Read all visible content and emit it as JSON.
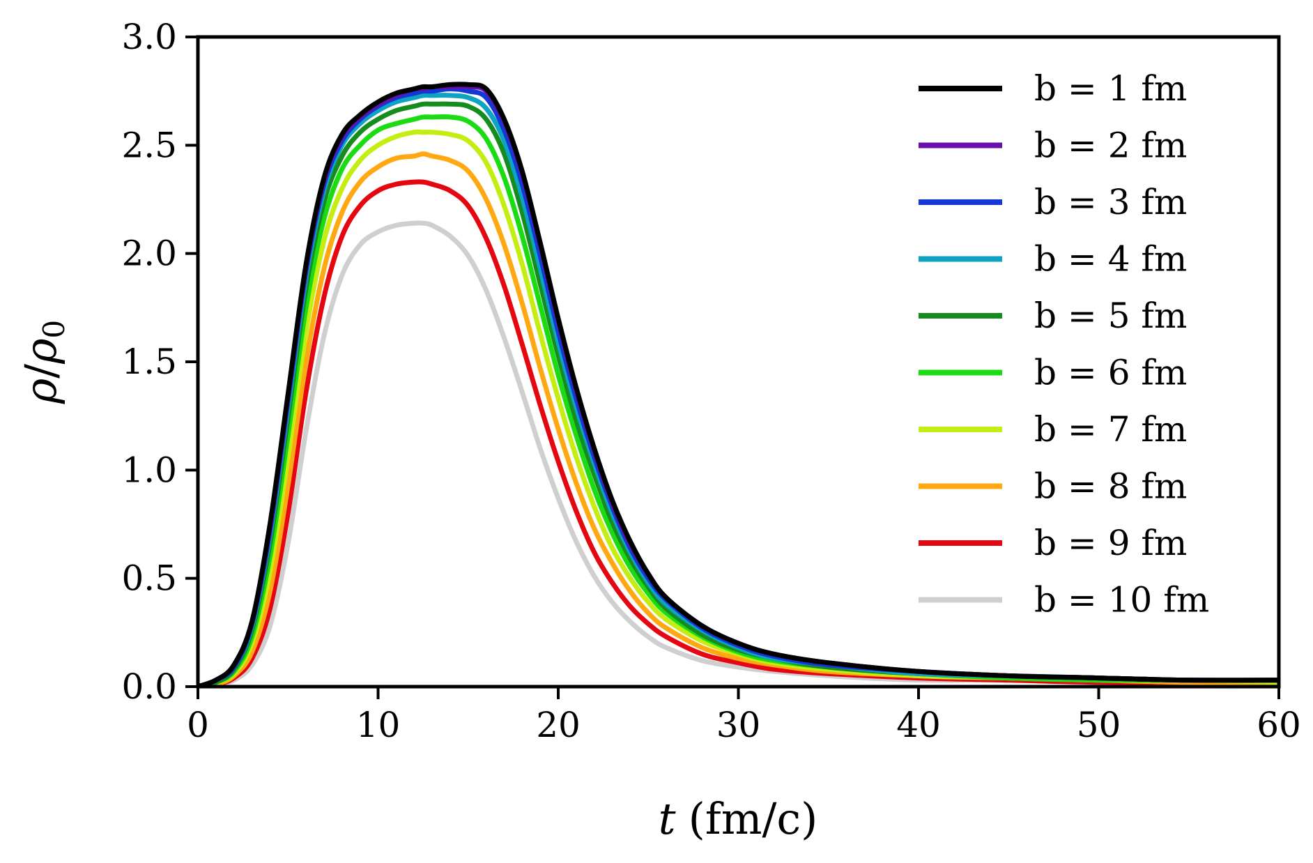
{
  "chart_data": {
    "type": "line",
    "xlabel_var": "t",
    "xlabel_unit": "(fm/c)",
    "ylabel_num": "ρ",
    "ylabel_slash": "/",
    "ylabel_den": "ρ",
    "ylabel_sub": "0",
    "xlim": [
      0,
      60
    ],
    "ylim": [
      0,
      3.0
    ],
    "xticks": [
      0,
      10,
      20,
      30,
      40,
      50,
      60
    ],
    "xtick_labels": [
      "0",
      "10",
      "20",
      "30",
      "40",
      "50",
      "60"
    ],
    "yticks": [
      0,
      0.5,
      1.0,
      1.5,
      2.0,
      2.5,
      3.0
    ],
    "ytick_labels": [
      "0.0",
      "0.5",
      "1.0",
      "1.5",
      "2.0",
      "2.5",
      "3.0"
    ],
    "legend_position": "top-right",
    "x": [
      0,
      1,
      2,
      3,
      4,
      5,
      6,
      7,
      8,
      9,
      10,
      11,
      12,
      12.5,
      13,
      14,
      15,
      16,
      17,
      18,
      19,
      20,
      21,
      22,
      23,
      24,
      25,
      26,
      28,
      30,
      32,
      35,
      40,
      45,
      50,
      55,
      60
    ],
    "series": [
      {
        "name": "b = 1 fm",
        "color": "#000000",
        "values": [
          0.0,
          0.03,
          0.1,
          0.3,
          0.75,
          1.35,
          1.95,
          2.35,
          2.55,
          2.64,
          2.7,
          2.74,
          2.76,
          2.77,
          2.77,
          2.78,
          2.78,
          2.76,
          2.62,
          2.38,
          2.05,
          1.7,
          1.38,
          1.1,
          0.86,
          0.67,
          0.52,
          0.41,
          0.28,
          0.2,
          0.15,
          0.11,
          0.07,
          0.05,
          0.04,
          0.03,
          0.03
        ]
      },
      {
        "name": "b = 2 fm",
        "color": "#6a0dad",
        "values": [
          0.0,
          0.03,
          0.1,
          0.3,
          0.74,
          1.34,
          1.94,
          2.34,
          2.54,
          2.63,
          2.69,
          2.73,
          2.76,
          2.76,
          2.77,
          2.77,
          2.77,
          2.75,
          2.61,
          2.37,
          2.04,
          1.69,
          1.37,
          1.09,
          0.85,
          0.66,
          0.52,
          0.41,
          0.28,
          0.2,
          0.15,
          0.11,
          0.07,
          0.05,
          0.04,
          0.03,
          0.03
        ]
      },
      {
        "name": "b = 3 fm",
        "color": "#1537d6",
        "values": [
          0.0,
          0.03,
          0.09,
          0.29,
          0.72,
          1.32,
          1.92,
          2.32,
          2.52,
          2.62,
          2.68,
          2.72,
          2.74,
          2.75,
          2.75,
          2.76,
          2.75,
          2.72,
          2.57,
          2.32,
          1.99,
          1.64,
          1.33,
          1.06,
          0.83,
          0.64,
          0.5,
          0.4,
          0.27,
          0.19,
          0.14,
          0.1,
          0.07,
          0.05,
          0.04,
          0.03,
          0.03
        ]
      },
      {
        "name": "b = 4 fm",
        "color": "#0ea3c2",
        "values": [
          0.0,
          0.03,
          0.09,
          0.28,
          0.7,
          1.29,
          1.89,
          2.29,
          2.5,
          2.6,
          2.66,
          2.7,
          2.72,
          2.73,
          2.73,
          2.73,
          2.72,
          2.67,
          2.52,
          2.26,
          1.93,
          1.59,
          1.29,
          1.03,
          0.8,
          0.62,
          0.48,
          0.38,
          0.26,
          0.18,
          0.13,
          0.1,
          0.06,
          0.05,
          0.04,
          0.03,
          0.03
        ]
      },
      {
        "name": "b = 5 fm",
        "color": "#168c1e",
        "values": [
          0.0,
          0.02,
          0.08,
          0.26,
          0.66,
          1.24,
          1.84,
          2.24,
          2.45,
          2.56,
          2.62,
          2.66,
          2.68,
          2.69,
          2.69,
          2.69,
          2.68,
          2.62,
          2.46,
          2.19,
          1.86,
          1.53,
          1.23,
          0.98,
          0.76,
          0.59,
          0.46,
          0.36,
          0.24,
          0.17,
          0.13,
          0.09,
          0.06,
          0.05,
          0.04,
          0.03,
          0.03
        ]
      },
      {
        "name": "b = 6 fm",
        "color": "#1bdb12",
        "values": [
          0.0,
          0.02,
          0.07,
          0.23,
          0.6,
          1.16,
          1.75,
          2.16,
          2.39,
          2.5,
          2.57,
          2.6,
          2.62,
          2.63,
          2.63,
          2.63,
          2.61,
          2.53,
          2.35,
          2.08,
          1.76,
          1.44,
          1.16,
          0.91,
          0.71,
          0.55,
          0.43,
          0.34,
          0.23,
          0.16,
          0.12,
          0.09,
          0.06,
          0.04,
          0.03,
          0.03,
          0.03
        ]
      },
      {
        "name": "b = 7 fm",
        "color": "#c4ee12",
        "values": [
          0.0,
          0.02,
          0.06,
          0.2,
          0.53,
          1.06,
          1.64,
          2.06,
          2.3,
          2.43,
          2.5,
          2.54,
          2.56,
          2.56,
          2.56,
          2.55,
          2.52,
          2.42,
          2.22,
          1.95,
          1.63,
          1.33,
          1.06,
          0.83,
          0.64,
          0.5,
          0.39,
          0.31,
          0.21,
          0.15,
          0.11,
          0.08,
          0.05,
          0.04,
          0.03,
          0.03,
          0.02
        ]
      },
      {
        "name": "b = 8 fm",
        "color": "#ffa812",
        "values": [
          0.0,
          0.01,
          0.05,
          0.16,
          0.44,
          0.93,
          1.5,
          1.93,
          2.19,
          2.33,
          2.4,
          2.44,
          2.45,
          2.46,
          2.45,
          2.43,
          2.38,
          2.25,
          2.04,
          1.77,
          1.47,
          1.19,
          0.94,
          0.73,
          0.57,
          0.44,
          0.34,
          0.27,
          0.18,
          0.13,
          0.1,
          0.07,
          0.05,
          0.04,
          0.03,
          0.02,
          0.02
        ]
      },
      {
        "name": "b = 9 fm",
        "color": "#e40712",
        "values": [
          0.0,
          0.01,
          0.04,
          0.13,
          0.36,
          0.8,
          1.36,
          1.8,
          2.08,
          2.22,
          2.29,
          2.32,
          2.33,
          2.33,
          2.32,
          2.29,
          2.22,
          2.07,
          1.85,
          1.58,
          1.3,
          1.04,
          0.81,
          0.62,
          0.48,
          0.37,
          0.29,
          0.23,
          0.15,
          0.11,
          0.08,
          0.06,
          0.04,
          0.03,
          0.02,
          0.02,
          0.02
        ]
      },
      {
        "name": "b = 10 fm",
        "color": "#cfcfcf",
        "values": [
          0.0,
          0.01,
          0.03,
          0.1,
          0.28,
          0.66,
          1.18,
          1.62,
          1.9,
          2.04,
          2.1,
          2.13,
          2.14,
          2.14,
          2.13,
          2.08,
          1.99,
          1.83,
          1.61,
          1.36,
          1.1,
          0.87,
          0.67,
          0.51,
          0.39,
          0.3,
          0.23,
          0.18,
          0.12,
          0.09,
          0.07,
          0.05,
          0.03,
          0.03,
          0.02,
          0.02,
          0.02
        ]
      }
    ]
  }
}
